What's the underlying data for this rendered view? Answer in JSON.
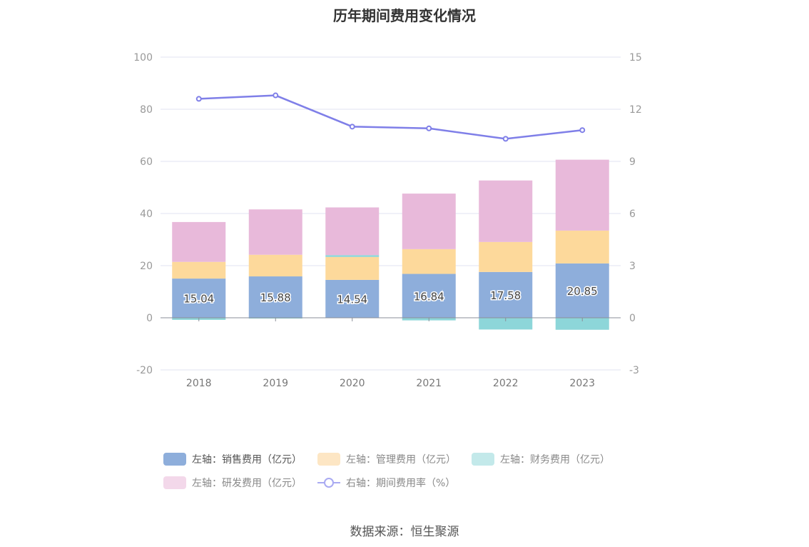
{
  "title": "历年期间费用变化情况",
  "source": "数据来源：恒生聚源",
  "colors": {
    "sales": "#8eaedb",
    "admin": "#fdd99b",
    "finance": "#8dd6d9",
    "rnd": "#e8b9da",
    "rate": "#7f7fe8",
    "grid": "#e0e3f0",
    "axis": "#8a8f99"
  },
  "legend": [
    {
      "label": "左轴：销售费用（亿元）",
      "color": "#8eaedb"
    },
    {
      "label": "左轴：管理费用（亿元）",
      "color": "#fde6c4"
    },
    {
      "label": "左轴：财务费用（亿元）",
      "color": "#c3e9ea"
    },
    {
      "label": "左轴：研发费用（亿元）",
      "color": "#f3d8ea"
    },
    {
      "label": "右轴：期间费用率（%）",
      "color": "#a9aaf2"
    }
  ],
  "chart_data": {
    "type": "bar",
    "title": "历年期间费用变化情况",
    "categories": [
      "2018",
      "2019",
      "2020",
      "2021",
      "2022",
      "2023"
    ],
    "left_axis": {
      "ylim": [
        -20,
        100
      ],
      "ticks": [
        -20,
        0,
        20,
        40,
        60,
        80,
        100
      ]
    },
    "right_axis": {
      "ylim": [
        -3,
        15
      ],
      "ticks": [
        -3,
        0,
        3,
        6,
        9,
        12,
        15
      ]
    },
    "series": [
      {
        "name": "左轴：销售费用（亿元）",
        "type": "bar",
        "axis": "left",
        "values": [
          15.04,
          15.88,
          14.54,
          16.84,
          17.58,
          20.85
        ],
        "labels": [
          "15.04",
          "15.88",
          "14.54",
          "16.84",
          "17.58",
          "20.85"
        ]
      },
      {
        "name": "左轴：管理费用（亿元）",
        "type": "bar",
        "axis": "left",
        "values": [
          6.4,
          8.3,
          8.8,
          9.5,
          11.5,
          12.6
        ]
      },
      {
        "name": "左轴：财务费用（亿元）",
        "type": "bar",
        "axis": "left",
        "values": [
          -0.8,
          -0.3,
          0.7,
          -1.0,
          -4.5,
          -4.6
        ]
      },
      {
        "name": "左轴：研发费用（亿元）",
        "type": "bar",
        "axis": "left",
        "values": [
          15.3,
          17.4,
          18.3,
          21.3,
          23.6,
          27.2
        ]
      },
      {
        "name": "右轴：期间费用率（%）",
        "type": "line",
        "axis": "right",
        "values": [
          12.6,
          12.8,
          11.0,
          10.9,
          10.3,
          10.8
        ]
      }
    ],
    "grid": true,
    "legend_position": "bottom"
  }
}
